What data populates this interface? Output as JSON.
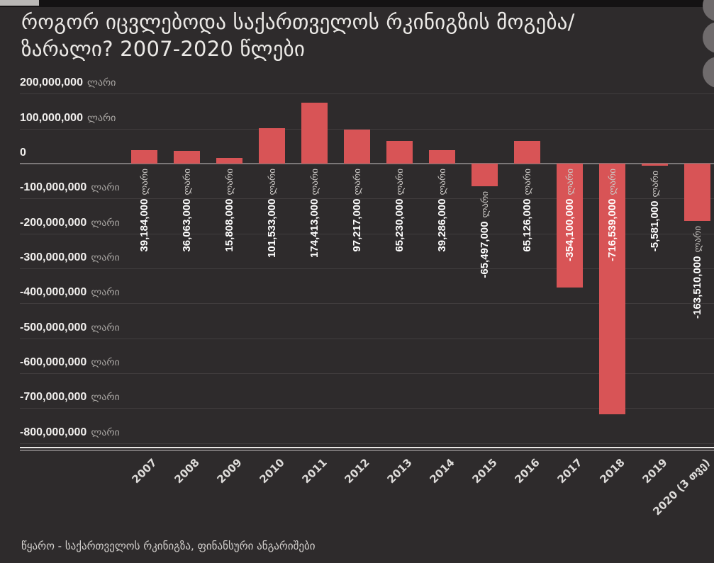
{
  "page": {
    "title_line1": "როგორ იცვლებოდა საქართველოს რკინიგზის მოგება/",
    "title_line2": "ზარალი? 2007-2020 წლები",
    "source": "წყარო - საქართველოს რკინიგზა, ფინანსური ანგარიშები"
  },
  "colors": {
    "background": "#2e2b2c",
    "bar": "#d85456",
    "gridline": "#413d3e",
    "zero_line": "#7b7778",
    "axis_number": "#f1efed",
    "axis_suffix": "#a8a5a2",
    "bottom_axis": "#e9e7e5",
    "year_label": "#dedcda",
    "title_text": "#ebe9e6",
    "source_text": "#d3d0cd"
  },
  "side_buttons": [
    {
      "name": "round-button-1"
    },
    {
      "name": "round-button-2"
    },
    {
      "name": "round-button-3"
    }
  ],
  "chart_data": {
    "type": "bar",
    "title": "როგორ იცვლებოდა საქართველოს რკინიგზის მოგება/ზარალი? 2007-2020 წლები",
    "xlabel": "",
    "ylabel": "",
    "unit_suffix": "ლარი",
    "ylim": [
      -800000000,
      200000000
    ],
    "grid": true,
    "legend": "none",
    "categories": [
      "2007",
      "2008",
      "2009",
      "2010",
      "2011",
      "2012",
      "2013",
      "2014",
      "2015",
      "2016",
      "2017",
      "2018",
      "2019",
      "2020 (3 თვე)"
    ],
    "values": [
      39184000,
      36063000,
      15808000,
      101533000,
      174413000,
      97217000,
      65230000,
      39286000,
      -65497000,
      65126000,
      -354100000,
      -716539000,
      -5581000,
      -163510000
    ],
    "value_labels": [
      "39,184,000",
      "36,063,000",
      "15,808,000",
      "101,533,000",
      "174,413,000",
      "97,217,000",
      "65,230,000",
      "39,286,000",
      "-65,497,000",
      "65,126,000",
      "-354,100,000",
      "-716,539,000",
      "-5,581,000",
      "-163,510,000"
    ],
    "y_ticks": [
      {
        "label": "200,000,000",
        "suffix": "ლარი",
        "value": 200000000
      },
      {
        "label": "100,000,000",
        "suffix": "ლარი",
        "value": 100000000
      },
      {
        "label": "0",
        "suffix": "",
        "value": 0
      },
      {
        "label": "-100,000,000",
        "suffix": "ლარი",
        "value": -100000000
      },
      {
        "label": "-200,000,000",
        "suffix": "ლარი",
        "value": -200000000
      },
      {
        "label": "-300,000,000",
        "suffix": "ლარი",
        "value": -300000000
      },
      {
        "label": "-400,000,000",
        "suffix": "ლარი",
        "value": -400000000
      },
      {
        "label": "-500,000,000",
        "suffix": "ლარი",
        "value": -500000000
      },
      {
        "label": "-600,000,000",
        "suffix": "ლარი",
        "value": -600000000
      },
      {
        "label": "-700,000,000",
        "suffix": "ლარი",
        "value": -700000000
      },
      {
        "label": "-800,000,000",
        "suffix": "ლარი",
        "value": -800000000
      }
    ],
    "source": "წყარო - საქართველოს რკინიგზა, ფინანსური ანგარიშები"
  }
}
